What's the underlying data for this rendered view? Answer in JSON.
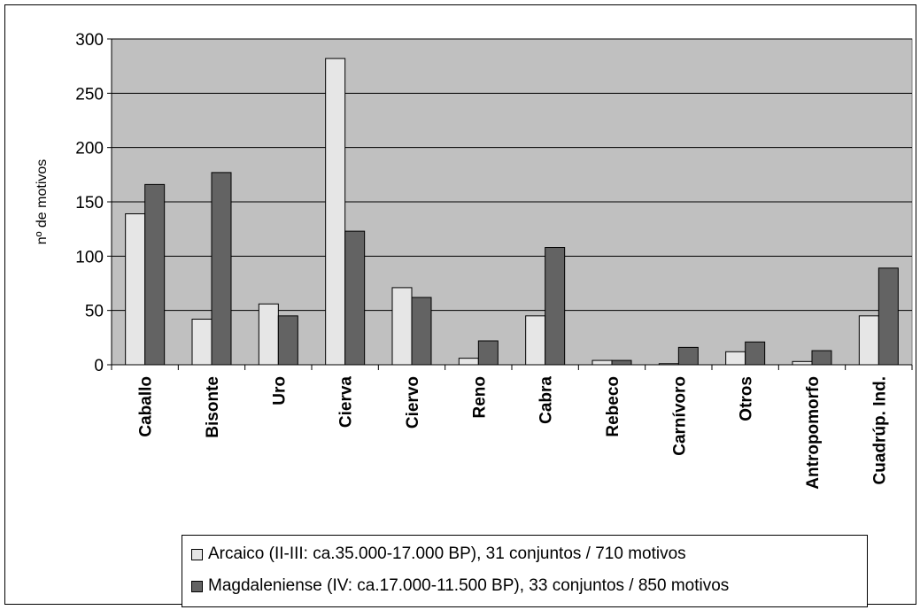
{
  "chart_data": {
    "type": "bar",
    "title": "",
    "xlabel": "",
    "ylabel": "nº de motivos",
    "ylim": [
      0,
      300
    ],
    "yticks": [
      0,
      50,
      100,
      150,
      200,
      250,
      300
    ],
    "grid": true,
    "legend_position": "bottom",
    "categories": [
      "Caballo",
      "Bisonte",
      "Uro",
      "Cierva",
      "Ciervo",
      "Reno",
      "Cabra",
      "Rebeco",
      "Carnívoro",
      "Otros",
      "Antropomorfo",
      "Cuadrúp. Ind."
    ],
    "series": [
      {
        "name": "Arcaico (II-III: ca.35.000-17.000 BP), 31 conjuntos / 710 motivos",
        "color": "#e6e6e6",
        "values": [
          139,
          42,
          56,
          282,
          71,
          6,
          45,
          4,
          1,
          12,
          3,
          45
        ]
      },
      {
        "name": "Magdaleniense (IV: ca.17.000-11.500 BP), 33 conjuntos / 850 motivos",
        "color": "#636363",
        "values": [
          166,
          177,
          45,
          123,
          62,
          22,
          108,
          4,
          16,
          21,
          13,
          89
        ]
      }
    ],
    "plot_background": "#c0c0c0"
  }
}
